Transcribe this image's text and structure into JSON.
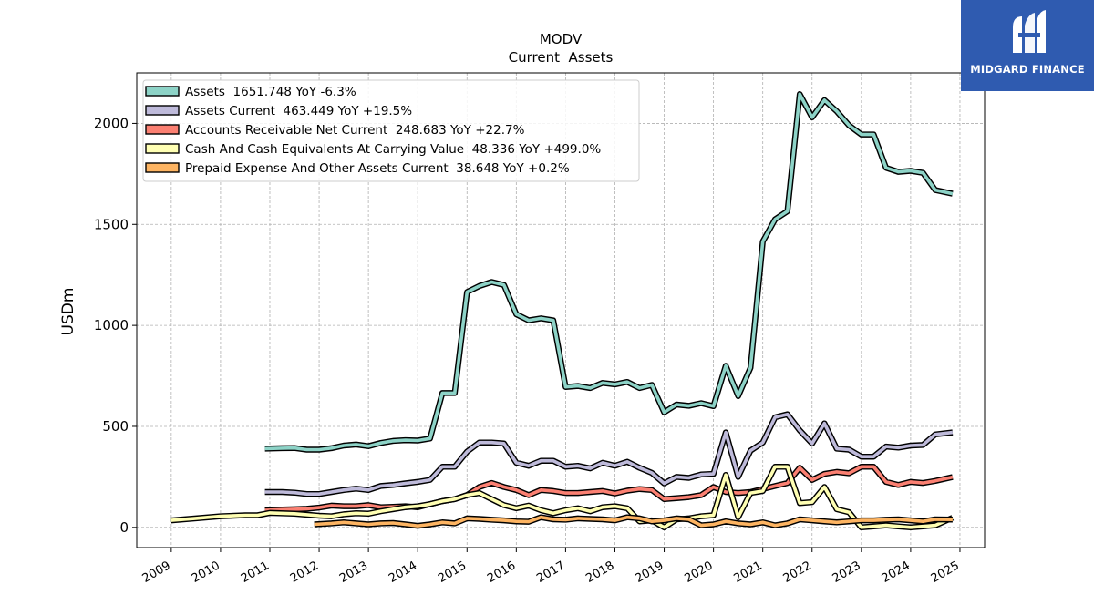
{
  "chart_data": {
    "type": "line",
    "title": "MODV",
    "subtitle": "Current  Assets",
    "ylabel": "USDm",
    "xlabel": "",
    "xlim": [
      2008.3,
      2025.5
    ],
    "ylim": [
      -100,
      2250
    ],
    "yticks": [
      0,
      500,
      1000,
      1500,
      2000
    ],
    "xticks": [
      "2009",
      "2010",
      "2011",
      "2012",
      "2013",
      "2014",
      "2015",
      "2016",
      "2017",
      "2018",
      "2019",
      "2020",
      "2021",
      "2022",
      "2023",
      "2024",
      "2025"
    ],
    "grid": true,
    "legend_position": "top-left",
    "series": [
      {
        "name": "Assets",
        "legend": "Assets  1651.748 YoY -6.3%",
        "color": "#8dd3c7",
        "x": [
          2010.9,
          2011.25,
          2011.5,
          2011.75,
          2012.0,
          2012.25,
          2012.5,
          2012.75,
          2013.0,
          2013.25,
          2013.5,
          2013.75,
          2014.0,
          2014.25,
          2014.5,
          2014.75,
          2015.0,
          2015.25,
          2015.5,
          2015.75,
          2016.0,
          2016.25,
          2016.5,
          2016.75,
          2017.0,
          2017.25,
          2017.5,
          2017.75,
          2018.0,
          2018.25,
          2018.5,
          2018.75,
          2019.0,
          2019.25,
          2019.5,
          2019.75,
          2020.0,
          2020.25,
          2020.5,
          2020.75,
          2021.0,
          2021.25,
          2021.5,
          2021.75,
          2022.0,
          2022.25,
          2022.5,
          2022.75,
          2023.0,
          2023.25,
          2023.5,
          2023.75,
          2024.0,
          2024.25,
          2024.5,
          2024.85
        ],
        "y": [
          390,
          392,
          393,
          385,
          385,
          392,
          405,
          410,
          402,
          418,
          428,
          432,
          430,
          440,
          665,
          665,
          1165,
          1195,
          1215,
          1200,
          1055,
          1025,
          1035,
          1025,
          695,
          700,
          690,
          715,
          708,
          720,
          690,
          705,
          570,
          608,
          602,
          615,
          600,
          800,
          650,
          790,
          1415,
          1525,
          1565,
          2145,
          2030,
          2115,
          2060,
          1990,
          1945,
          1945,
          1780,
          1760,
          1765,
          1755,
          1670,
          1652
        ]
      },
      {
        "name": "Assets Current",
        "legend": "Assets Current  463.449 YoY +19.5%",
        "color": "#bebada",
        "x": [
          2010.9,
          2011.25,
          2011.5,
          2011.75,
          2012.0,
          2012.25,
          2012.5,
          2012.75,
          2013.0,
          2013.25,
          2013.5,
          2013.75,
          2014.0,
          2014.25,
          2014.5,
          2014.75,
          2015.0,
          2015.25,
          2015.5,
          2015.75,
          2016.0,
          2016.25,
          2016.5,
          2016.75,
          2017.0,
          2017.25,
          2017.5,
          2017.75,
          2018.0,
          2018.25,
          2018.5,
          2018.75,
          2019.0,
          2019.25,
          2019.5,
          2019.75,
          2020.0,
          2020.25,
          2020.5,
          2020.75,
          2021.0,
          2021.25,
          2021.5,
          2021.75,
          2022.0,
          2022.25,
          2022.5,
          2022.75,
          2023.0,
          2023.25,
          2023.5,
          2023.75,
          2024.0,
          2024.25,
          2024.5,
          2024.85
        ],
        "y": [
          175,
          175,
          172,
          165,
          165,
          175,
          185,
          192,
          185,
          205,
          210,
          218,
          225,
          235,
          300,
          300,
          375,
          420,
          420,
          415,
          320,
          305,
          330,
          330,
          300,
          305,
          292,
          320,
          305,
          325,
          295,
          270,
          218,
          250,
          245,
          262,
          265,
          470,
          250,
          380,
          420,
          545,
          560,
          480,
          415,
          515,
          390,
          385,
          350,
          350,
          400,
          395,
          405,
          408,
          460,
          470
        ]
      },
      {
        "name": "Accounts Receivable Net Current",
        "legend": "Accounts Receivable Net Current  248.683 YoY +22.7%",
        "color": "#fb8072",
        "x": [
          2010.9,
          2011.25,
          2011.5,
          2011.75,
          2012.0,
          2012.25,
          2012.5,
          2012.75,
          2013.0,
          2013.25,
          2013.5,
          2013.75,
          2014.0,
          2014.25,
          2014.5,
          2014.75,
          2015.0,
          2015.25,
          2015.5,
          2015.75,
          2016.0,
          2016.25,
          2016.5,
          2016.75,
          2017.0,
          2017.25,
          2017.5,
          2017.75,
          2018.0,
          2018.25,
          2018.5,
          2018.75,
          2019.0,
          2019.25,
          2019.5,
          2019.75,
          2020.0,
          2020.25,
          2020.5,
          2020.75,
          2021.0,
          2021.25,
          2021.5,
          2021.75,
          2022.0,
          2022.25,
          2022.5,
          2022.75,
          2023.0,
          2023.25,
          2023.5,
          2023.75,
          2024.0,
          2024.25,
          2024.5,
          2024.85
        ],
        "y": [
          85,
          88,
          90,
          92,
          98,
          108,
          105,
          105,
          110,
          100,
          102,
          105,
          100,
          115,
          130,
          140,
          160,
          200,
          220,
          200,
          185,
          160,
          185,
          180,
          170,
          170,
          175,
          180,
          168,
          182,
          190,
          185,
          140,
          145,
          150,
          160,
          200,
          175,
          170,
          175,
          190,
          205,
          220,
          295,
          235,
          265,
          275,
          268,
          300,
          300,
          225,
          210,
          225,
          220,
          230,
          249
        ]
      },
      {
        "name": "Cash And Cash Equivalents At Carrying Value",
        "legend": "Cash And Cash Equivalents At Carrying Value  48.336 YoY +499.0%",
        "color": "#ffffb3",
        "x": [
          2009.0,
          2009.5,
          2010.0,
          2010.5,
          2010.75,
          2011.0,
          2011.5,
          2012.0,
          2012.25,
          2012.5,
          2012.75,
          2013.0,
          2013.25,
          2013.5,
          2013.75,
          2014.0,
          2014.25,
          2014.5,
          2014.75,
          2015.0,
          2015.25,
          2015.5,
          2015.75,
          2016.0,
          2016.25,
          2016.5,
          2016.75,
          2017.0,
          2017.25,
          2017.5,
          2017.75,
          2018.0,
          2018.25,
          2018.5,
          2018.75,
          2019.0,
          2019.25,
          2019.5,
          2019.75,
          2020.0,
          2020.25,
          2020.5,
          2020.75,
          2021.0,
          2021.25,
          2021.5,
          2021.75,
          2022.0,
          2022.25,
          2022.5,
          2022.75,
          2023.0,
          2023.25,
          2023.5,
          2023.75,
          2024.0,
          2024.25,
          2024.5,
          2024.85
        ],
        "y": [
          35,
          45,
          55,
          60,
          60,
          72,
          68,
          58,
          55,
          65,
          70,
          68,
          80,
          90,
          100,
          105,
          115,
          130,
          140,
          160,
          170,
          140,
          110,
          95,
          108,
          85,
          70,
          85,
          95,
          80,
          100,
          105,
          95,
          30,
          35,
          0,
          40,
          45,
          55,
          60,
          260,
          50,
          170,
          180,
          300,
          300,
          120,
          125,
          200,
          90,
          75,
          0,
          5,
          10,
          5,
          0,
          5,
          10,
          48
        ]
      },
      {
        "name": "Prepaid Expense And Other Assets Current",
        "legend": "Prepaid Expense And Other Assets Current  38.648 YoY +0.2%",
        "color": "#fdb462",
        "x": [
          2011.9,
          2012.25,
          2012.5,
          2012.75,
          2013.0,
          2013.25,
          2013.5,
          2013.75,
          2014.0,
          2014.25,
          2014.5,
          2014.75,
          2015.0,
          2015.25,
          2015.5,
          2015.75,
          2016.0,
          2016.25,
          2016.5,
          2016.75,
          2017.0,
          2017.25,
          2017.5,
          2017.75,
          2018.0,
          2018.25,
          2018.5,
          2018.75,
          2019.0,
          2019.25,
          2019.5,
          2019.75,
          2020.0,
          2020.25,
          2020.5,
          2020.75,
          2021.0,
          2021.25,
          2021.5,
          2021.75,
          2022.0,
          2022.25,
          2022.5,
          2022.75,
          2023.0,
          2023.25,
          2023.5,
          2023.75,
          2024.0,
          2024.25,
          2024.5,
          2024.85
        ],
        "y": [
          15,
          20,
          25,
          20,
          15,
          20,
          22,
          15,
          8,
          15,
          25,
          20,
          45,
          42,
          38,
          35,
          30,
          28,
          50,
          40,
          38,
          45,
          42,
          40,
          35,
          50,
          45,
          30,
          35,
          45,
          40,
          10,
          15,
          30,
          20,
          15,
          25,
          10,
          20,
          40,
          35,
          30,
          25,
          30,
          35,
          35,
          38,
          40,
          35,
          30,
          40,
          39
        ]
      }
    ]
  },
  "logo": {
    "text": "MIDGARD FINANCE"
  }
}
